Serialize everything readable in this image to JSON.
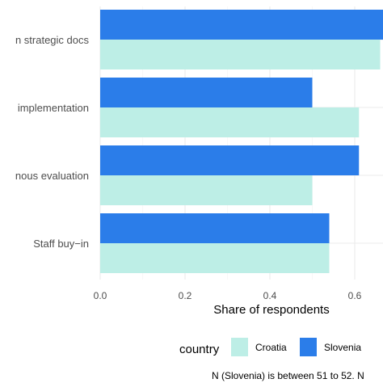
{
  "chart_data": {
    "type": "bar",
    "orientation": "horizontal",
    "categories": [
      "n strategic docs",
      " implementation",
      "nous evaluation",
      "Staff buy−in"
    ],
    "series": [
      {
        "name": "Slovenia",
        "color": "#2b7de9",
        "values": [
          0.7,
          0.5,
          0.61,
          0.54
        ]
      },
      {
        "name": "Croatia",
        "color": "#bdeee6",
        "values": [
          0.66,
          0.61,
          0.5,
          0.54
        ]
      }
    ],
    "xlabel": "Share of respondents",
    "ylabel": "",
    "xlim": [
      0,
      0.7
    ],
    "xticks": [
      "0.0",
      "0.2",
      "0.4",
      "0.6"
    ],
    "grid": true,
    "legend": {
      "title": "country",
      "position": "bottom",
      "entries": [
        {
          "label": "Croatia",
          "color": "#bdeee6"
        },
        {
          "label": "Slovenia",
          "color": "#2b7de9"
        }
      ]
    },
    "caption": "N (Slovenia) is between 51 to 52. N"
  }
}
